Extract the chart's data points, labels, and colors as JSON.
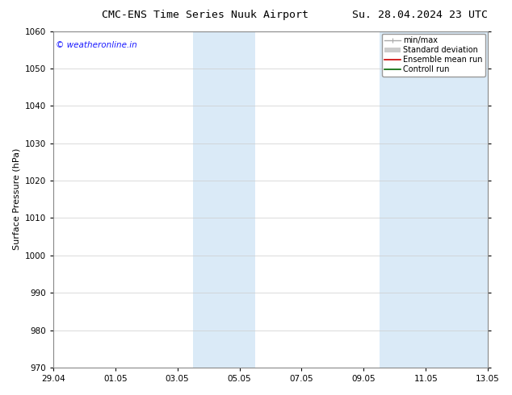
{
  "title_left": "CMC-ENS Time Series Nuuk Airport",
  "title_right": "Su. 28.04.2024 23 UTC",
  "ylabel": "Surface Pressure (hPa)",
  "ylim": [
    970,
    1060
  ],
  "yticks": [
    970,
    980,
    990,
    1000,
    1010,
    1020,
    1030,
    1040,
    1050,
    1060
  ],
  "xlim_start": 0,
  "xlim_end": 14,
  "xtick_labels": [
    "29.04",
    "01.05",
    "03.05",
    "05.05",
    "07.05",
    "09.05",
    "11.05",
    "13.05"
  ],
  "xtick_pos_mapped": [
    0,
    2,
    4,
    6,
    8,
    10,
    12,
    14
  ],
  "shaded_regions": [
    {
      "xmin": 4.5,
      "xmax": 6.5,
      "color": "#daeaf7"
    },
    {
      "xmin": 10.5,
      "xmax": 14.0,
      "color": "#daeaf7"
    }
  ],
  "watermark": "© weatheronline.in",
  "watermark_color": "#1a1aff",
  "legend_items": [
    {
      "label": "min/max",
      "color": "#aaaaaa",
      "lw": 1.0
    },
    {
      "label": "Standard deviation",
      "color": "#cccccc",
      "lw": 5
    },
    {
      "label": "Ensemble mean run",
      "color": "#cc0000",
      "lw": 1.2
    },
    {
      "label": "Controll run",
      "color": "#006600",
      "lw": 1.2
    }
  ],
  "bg_color": "#ffffff",
  "plot_bg_color": "#ffffff",
  "grid_color": "#cccccc",
  "title_fontsize": 9.5,
  "ylabel_fontsize": 8,
  "tick_fontsize": 7.5,
  "legend_fontsize": 7,
  "watermark_fontsize": 7.5
}
